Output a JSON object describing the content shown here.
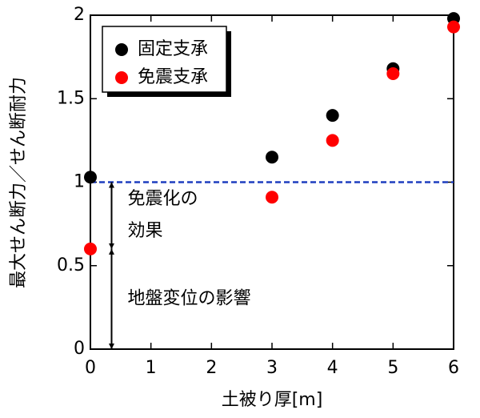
{
  "chart_data": {
    "type": "scatter",
    "xlabel": "土被り厚[m]",
    "ylabel": "最大せん断力／せん断耐力",
    "xlim": [
      0,
      6
    ],
    "xticks": [
      0,
      1,
      2,
      3,
      4,
      5,
      6
    ],
    "ylim": [
      0,
      2
    ],
    "yticks": [
      0,
      0.5,
      1,
      1.5,
      2
    ],
    "legend": "upper left",
    "series": [
      {
        "name": "固定支承",
        "color": "#000000",
        "x": [
          0,
          3,
          4,
          5,
          6
        ],
        "values": [
          1.03,
          1.15,
          1.4,
          1.68,
          1.98
        ]
      },
      {
        "name": "免震支承",
        "color": "#ff0000",
        "x": [
          0,
          3,
          4,
          5,
          6
        ],
        "values": [
          0.6,
          0.91,
          1.25,
          1.65,
          1.93
        ]
      }
    ],
    "reference_line": {
      "y": 1,
      "color": "#1f3fbf"
    },
    "annotations": [
      {
        "text": [
          "免震化の",
          "効果"
        ],
        "x": 0.35,
        "y": [
          0.6,
          1
        ]
      },
      {
        "text": [
          "地盤変位の影響"
        ],
        "x": 0.35,
        "y": [
          0,
          0.6
        ]
      }
    ]
  }
}
